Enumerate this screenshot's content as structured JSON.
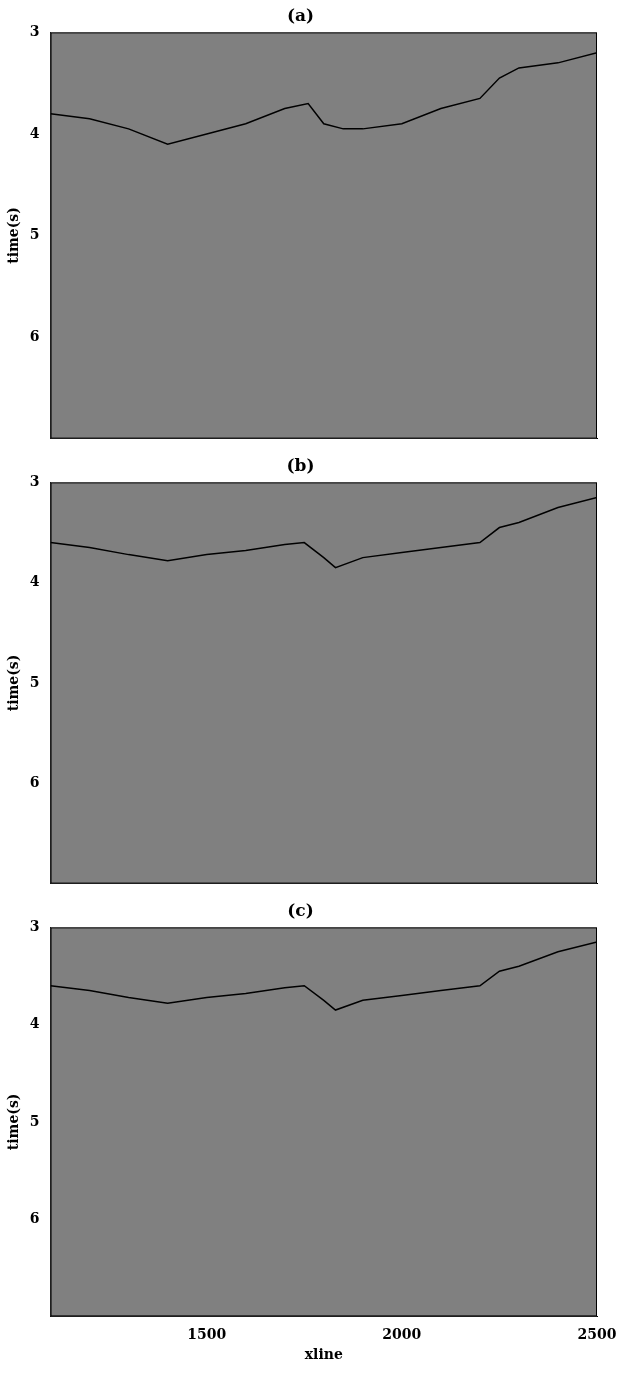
{
  "chart_data": [
    {
      "type": "line",
      "title": "(a)",
      "ylabel": "time(s)",
      "xlim": [
        1100,
        2500
      ],
      "ylim": [
        3,
        7
      ],
      "yticks": [
        3,
        4,
        5,
        6
      ],
      "tick_labels": "y",
      "grid": false,
      "series": [
        {
          "color": "#000000",
          "x": [
            1100,
            1200,
            1300,
            1400,
            1500,
            1600,
            1700,
            1760,
            1800,
            1850,
            1900,
            2000,
            2100,
            2200,
            2250,
            2300,
            2400,
            2500
          ],
          "values": [
            3.8,
            3.85,
            3.95,
            4.1,
            4.0,
            3.9,
            3.75,
            3.7,
            3.9,
            3.95,
            3.95,
            3.9,
            3.75,
            3.65,
            3.45,
            3.35,
            3.3,
            3.2
          ]
        }
      ]
    },
    {
      "type": "line",
      "title": "(b)",
      "ylabel": "time(s)",
      "xlim": [
        1100,
        2500
      ],
      "ylim": [
        3,
        7
      ],
      "yticks": [
        3,
        4,
        5,
        6
      ],
      "tick_labels": "y",
      "grid": false,
      "series": [
        {
          "color": "#000000",
          "x": [
            1100,
            1200,
            1300,
            1400,
            1500,
            1600,
            1700,
            1750,
            1800,
            1830,
            1900,
            2000,
            2100,
            2200,
            2250,
            2300,
            2400,
            2500
          ],
          "values": [
            3.6,
            3.65,
            3.72,
            3.78,
            3.72,
            3.68,
            3.62,
            3.6,
            3.75,
            3.85,
            3.75,
            3.7,
            3.65,
            3.6,
            3.45,
            3.4,
            3.25,
            3.15
          ]
        }
      ]
    },
    {
      "type": "line",
      "title": "(c)",
      "ylabel": "time(s)",
      "xlabel": "xline",
      "xlim": [
        1100,
        2500
      ],
      "ylim": [
        3,
        7
      ],
      "yticks": [
        3,
        4,
        5,
        6
      ],
      "xticks": [
        1500,
        2000,
        2500
      ],
      "grid": false,
      "series": [
        {
          "color": "#000000",
          "x": [
            1100,
            1200,
            1300,
            1400,
            1500,
            1600,
            1700,
            1750,
            1800,
            1830,
            1900,
            2000,
            2100,
            2200,
            2250,
            2300,
            2400,
            2500
          ],
          "values": [
            3.6,
            3.65,
            3.72,
            3.78,
            3.72,
            3.68,
            3.62,
            3.6,
            3.75,
            3.85,
            3.75,
            3.7,
            3.65,
            3.6,
            3.45,
            3.4,
            3.25,
            3.15
          ]
        }
      ]
    }
  ]
}
